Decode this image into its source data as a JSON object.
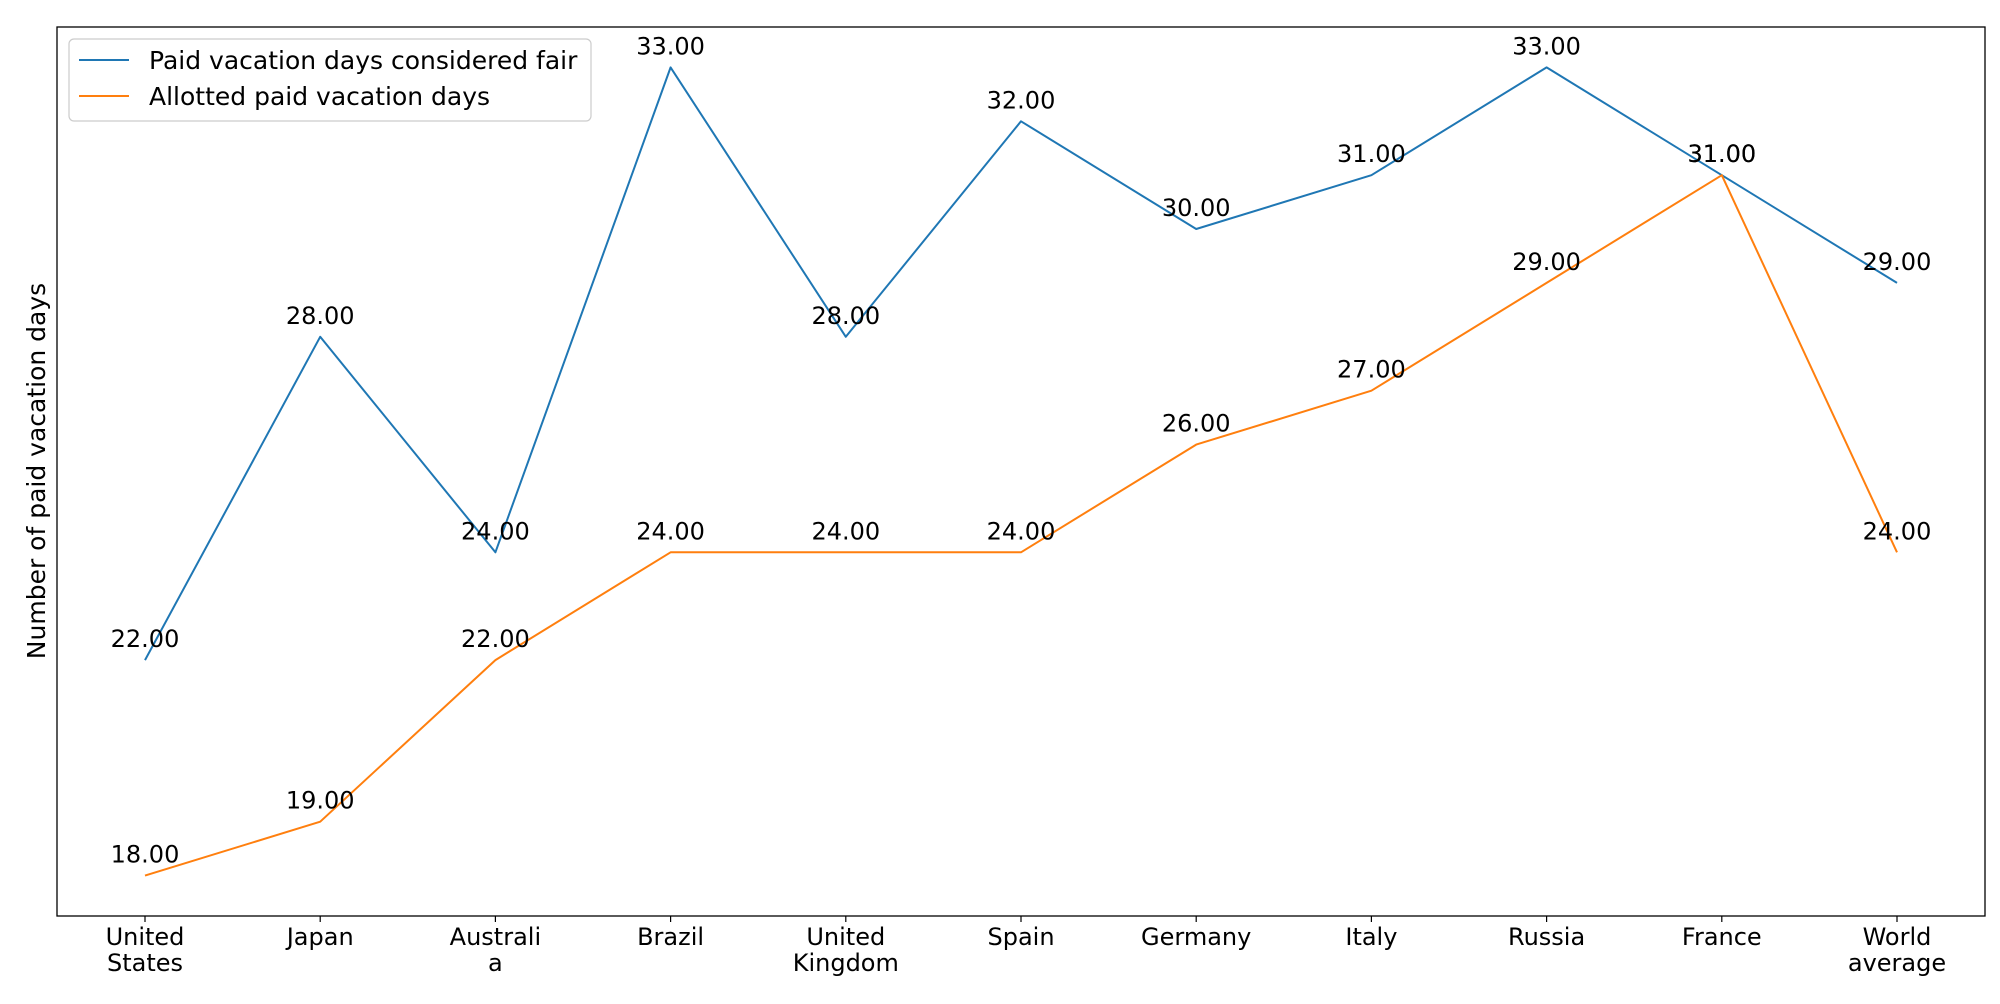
{
  "chart_data": {
    "type": "line",
    "title": "",
    "xlabel": "",
    "ylabel": "Number of paid vacation days",
    "categories": [
      [
        "United",
        "States"
      ],
      [
        "Japan"
      ],
      [
        "Australi",
        "a"
      ],
      [
        "Brazil"
      ],
      [
        "United",
        "Kingdom"
      ],
      [
        "Spain"
      ],
      [
        "Germany"
      ],
      [
        "Italy"
      ],
      [
        "Russia"
      ],
      [
        "France"
      ],
      [
        "World",
        "average"
      ]
    ],
    "series": [
      {
        "name": "Paid vacation days considered fair",
        "color": "#1f77b4",
        "values": [
          22,
          28,
          24,
          33,
          28,
          32,
          30,
          31,
          33,
          31,
          29
        ]
      },
      {
        "name": "Allotted paid vacation days",
        "color": "#ff7f0e",
        "values": [
          18,
          19,
          22,
          24,
          24,
          24,
          26,
          27,
          29,
          31,
          24
        ]
      }
    ],
    "ylim": [
      17.25,
      33.75
    ],
    "value_label_format": "2 decimals",
    "grid": false,
    "legend_position": "top-left"
  }
}
